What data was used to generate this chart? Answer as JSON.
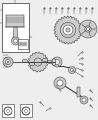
{
  "bg_color": "#eeeeee",
  "fig_width": 0.98,
  "fig_height": 1.2,
  "dpi": 100,
  "dark": "#333333",
  "light_gray": "#cccccc",
  "mid_gray": "#aaaaaa",
  "white": "#ffffff"
}
